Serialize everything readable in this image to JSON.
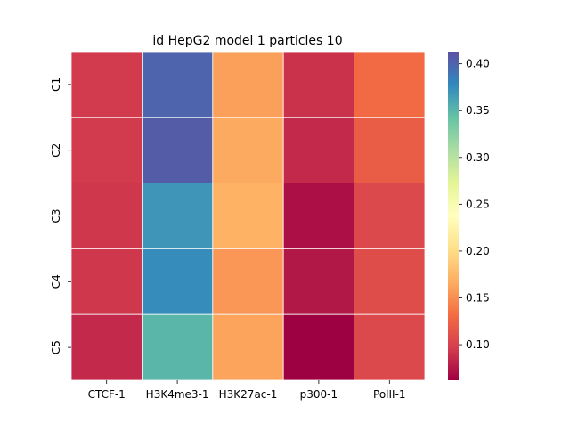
{
  "chart_data": {
    "type": "heatmap",
    "title": "id HepG2 model 1 particles 10",
    "xlabel": "",
    "ylabel": "",
    "columns": [
      "CTCF-1",
      "H3K4me3-1",
      "H3K27ac-1",
      "p300-1",
      "PolII-1"
    ],
    "rows": [
      "C1",
      "C2",
      "C3",
      "C4",
      "C5"
    ],
    "values": [
      [
        0.095,
        0.4,
        0.16,
        0.09,
        0.13
      ],
      [
        0.095,
        0.405,
        0.165,
        0.085,
        0.12
      ],
      [
        0.093,
        0.37,
        0.17,
        0.07,
        0.105
      ],
      [
        0.093,
        0.375,
        0.155,
        0.075,
        0.108
      ],
      [
        0.085,
        0.35,
        0.162,
        0.06,
        0.105
      ]
    ],
    "colormap": "Spectral",
    "vmin": 0.062,
    "vmax": 0.413,
    "colorbar_ticks": [
      0.1,
      0.15,
      0.2,
      0.25,
      0.3,
      0.35,
      0.4
    ],
    "colorbar_tick_labels": [
      "0.10",
      "0.15",
      "0.20",
      "0.25",
      "0.30",
      "0.35",
      "0.40"
    ],
    "grid": true,
    "legend": "colorbar-right"
  }
}
